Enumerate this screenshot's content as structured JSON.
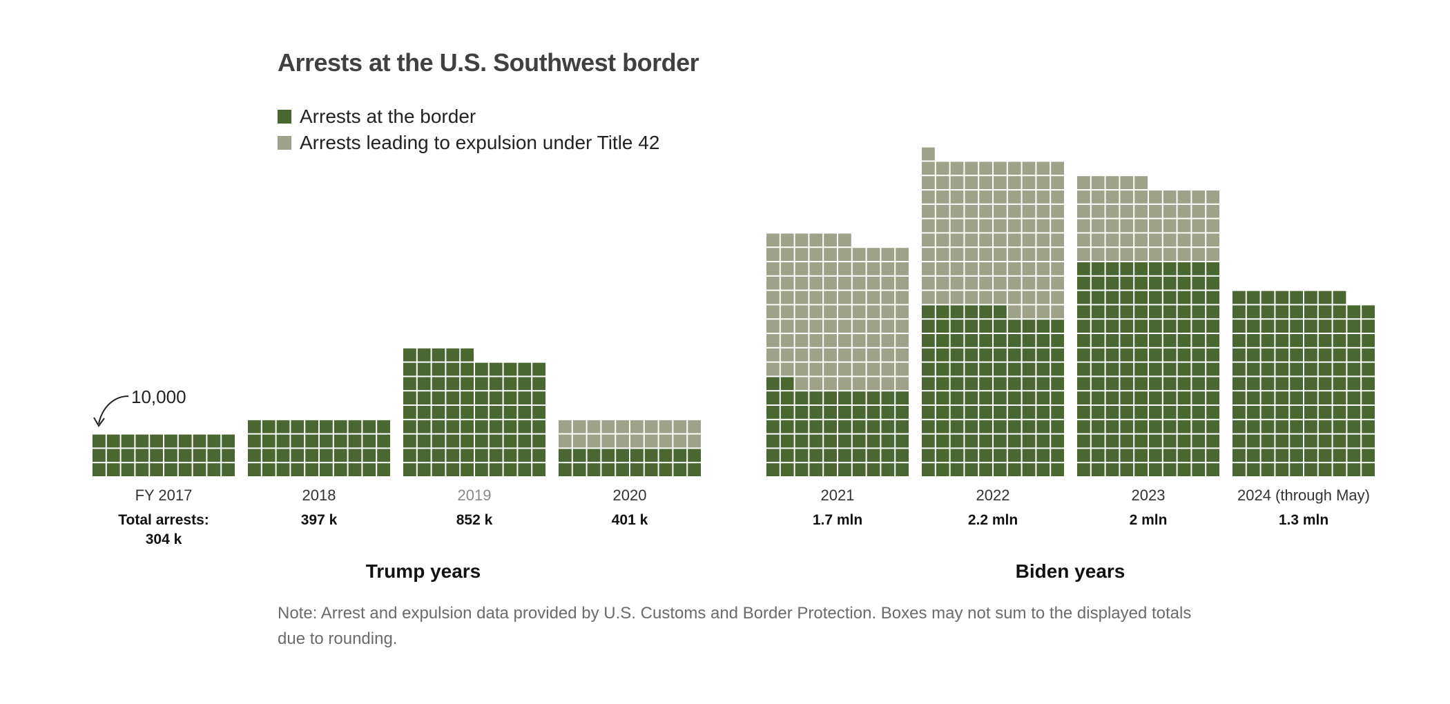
{
  "title": "Arrests at the U.S. Southwest border",
  "legend": [
    {
      "label": "Arrests at the border",
      "color": "#4a6732"
    },
    {
      "label": "Arrests leading to expulsion under Title 42",
      "color": "#9ea28a"
    }
  ],
  "annotation": "10,000",
  "eras": {
    "trump": "Trump years",
    "biden": "Biden years"
  },
  "note": "Note: Arrest and expulsion data provided by U.S. Customs and Border Protection. Boxes may not sum to the displayed totals due to rounding.",
  "chart_data": {
    "type": "waffle",
    "title": "Arrests at the U.S. Southwest border",
    "unit_per_box": 10000,
    "boxes_per_row": 10,
    "total_prefix": "Total arrests:",
    "series": [
      {
        "name": "Arrests at the border",
        "color": "#4a6732"
      },
      {
        "name": "Arrests leading to expulsion under Title 42",
        "color": "#9ea28a"
      }
    ],
    "categories": [
      {
        "year": "FY 2017",
        "total": "304 k",
        "border_boxes": 30,
        "title42_boxes": 0
      },
      {
        "year": "2018",
        "total": "397 k",
        "border_boxes": 40,
        "title42_boxes": 0
      },
      {
        "year": "2019",
        "total": "852 k",
        "border_boxes": 85,
        "title42_boxes": 0
      },
      {
        "year": "2020",
        "total": "401 k",
        "border_boxes": 20,
        "title42_boxes": 20
      },
      {
        "year": "2021",
        "total": "1.7 mln",
        "border_boxes": 62,
        "title42_boxes": 104
      },
      {
        "year": "2022",
        "total": "2.2 mln",
        "border_boxes": 116,
        "title42_boxes": 105
      },
      {
        "year": "2023",
        "total": "2 mln",
        "border_boxes": 150,
        "title42_boxes": 55
      },
      {
        "year": "2024 (through May)",
        "total": "1.3 mln",
        "border_boxes": 128,
        "title42_boxes": 0
      }
    ]
  }
}
